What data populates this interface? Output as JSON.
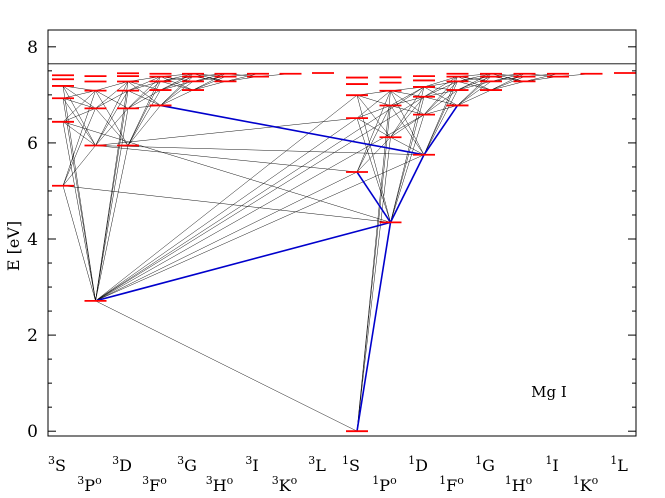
{
  "diagram": {
    "y_axis_label": "E [eV]",
    "y_range": [
      -0.1,
      8.35
    ],
    "y_ticks": [
      0,
      2,
      4,
      6,
      8
    ],
    "ionization_limit_eV": 7.646,
    "atom_label": "Mg I",
    "colors": {
      "level": "#ff0000",
      "line": "#000000",
      "highlight": "#0000cc",
      "axis": "#000000"
    },
    "terms": [
      {
        "mult": "3",
        "L": "S",
        "odd": false,
        "energies": [
          5.108,
          6.439,
          6.93,
          7.186,
          7.325,
          7.408
        ]
      },
      {
        "mult": "3",
        "L": "P",
        "odd": true,
        "energies": [
          2.712,
          5.946,
          6.719,
          7.088,
          7.278,
          7.39
        ]
      },
      {
        "mult": "3",
        "L": "D",
        "odd": false,
        "energies": [
          5.946,
          6.719,
          7.088,
          7.278,
          7.39,
          7.45
        ]
      },
      {
        "mult": "3",
        "L": "F",
        "odd": true,
        "energies": [
          6.78,
          7.1,
          7.28,
          7.38,
          7.44
        ]
      },
      {
        "mult": "3",
        "L": "G",
        "odd": false,
        "energies": [
          7.1,
          7.28,
          7.38,
          7.44
        ]
      },
      {
        "mult": "3",
        "L": "H",
        "odd": true,
        "energies": [
          7.28,
          7.38,
          7.44
        ]
      },
      {
        "mult": "3",
        "L": "I",
        "odd": false,
        "energies": [
          7.38,
          7.44
        ]
      },
      {
        "mult": "3",
        "L": "K",
        "odd": true,
        "energies": [
          7.44
        ]
      },
      {
        "mult": "3",
        "L": "L",
        "odd": false,
        "energies": [
          7.455
        ]
      },
      {
        "mult": "1",
        "L": "S",
        "odd": false,
        "energies": [
          0.0,
          5.394,
          6.516,
          6.993,
          7.225,
          7.36
        ]
      },
      {
        "mult": "1",
        "L": "P",
        "odd": true,
        "energies": [
          4.346,
          6.118,
          6.778,
          7.085,
          7.255,
          7.365
        ]
      },
      {
        "mult": "1",
        "L": "D",
        "odd": false,
        "energies": [
          5.753,
          6.588,
          6.96,
          7.165,
          7.3,
          7.39
        ]
      },
      {
        "mult": "1",
        "L": "F",
        "odd": true,
        "energies": [
          6.78,
          7.1,
          7.28,
          7.38,
          7.44
        ]
      },
      {
        "mult": "1",
        "L": "G",
        "odd": false,
        "energies": [
          7.1,
          7.28,
          7.38,
          7.44
        ]
      },
      {
        "mult": "1",
        "L": "H",
        "odd": true,
        "energies": [
          7.28,
          7.38,
          7.44
        ]
      },
      {
        "mult": "1",
        "L": "I",
        "odd": false,
        "energies": [
          7.38,
          7.44
        ]
      },
      {
        "mult": "1",
        "L": "K",
        "odd": true,
        "energies": [
          7.44
        ]
      },
      {
        "mult": "1",
        "L": "L",
        "odd": false,
        "energies": [
          7.455
        ]
      }
    ],
    "highlight_transitions": [
      [
        [
          9,
          0
        ],
        [
          10,
          0
        ]
      ],
      [
        [
          9,
          1
        ],
        [
          10,
          0
        ]
      ],
      [
        [
          10,
          0
        ],
        [
          11,
          0
        ]
      ],
      [
        [
          11,
          0
        ],
        [
          12,
          0
        ]
      ],
      [
        [
          1,
          0
        ],
        [
          10,
          0
        ]
      ],
      [
        [
          3,
          0
        ],
        [
          11,
          0
        ]
      ]
    ],
    "extra_transitions": [
      [
        [
          9,
          0
        ],
        [
          1,
          0
        ]
      ],
      [
        [
          1,
          0
        ],
        [
          9,
          1
        ]
      ],
      [
        [
          1,
          0
        ],
        [
          9,
          2
        ]
      ],
      [
        [
          1,
          0
        ],
        [
          9,
          3
        ]
      ],
      [
        [
          1,
          0
        ],
        [
          11,
          0
        ]
      ],
      [
        [
          1,
          0
        ],
        [
          11,
          1
        ]
      ],
      [
        [
          1,
          0
        ],
        [
          11,
          2
        ]
      ],
      [
        [
          1,
          0
        ],
        [
          11,
          3
        ]
      ],
      [
        [
          10,
          0
        ],
        [
          0,
          0
        ]
      ],
      [
        [
          10,
          0
        ],
        [
          0,
          1
        ]
      ],
      [
        [
          9,
          1
        ],
        [
          1,
          1
        ]
      ],
      [
        [
          9,
          2
        ],
        [
          1,
          1
        ]
      ],
      [
        [
          11,
          0
        ],
        [
          1,
          1
        ]
      ]
    ]
  }
}
